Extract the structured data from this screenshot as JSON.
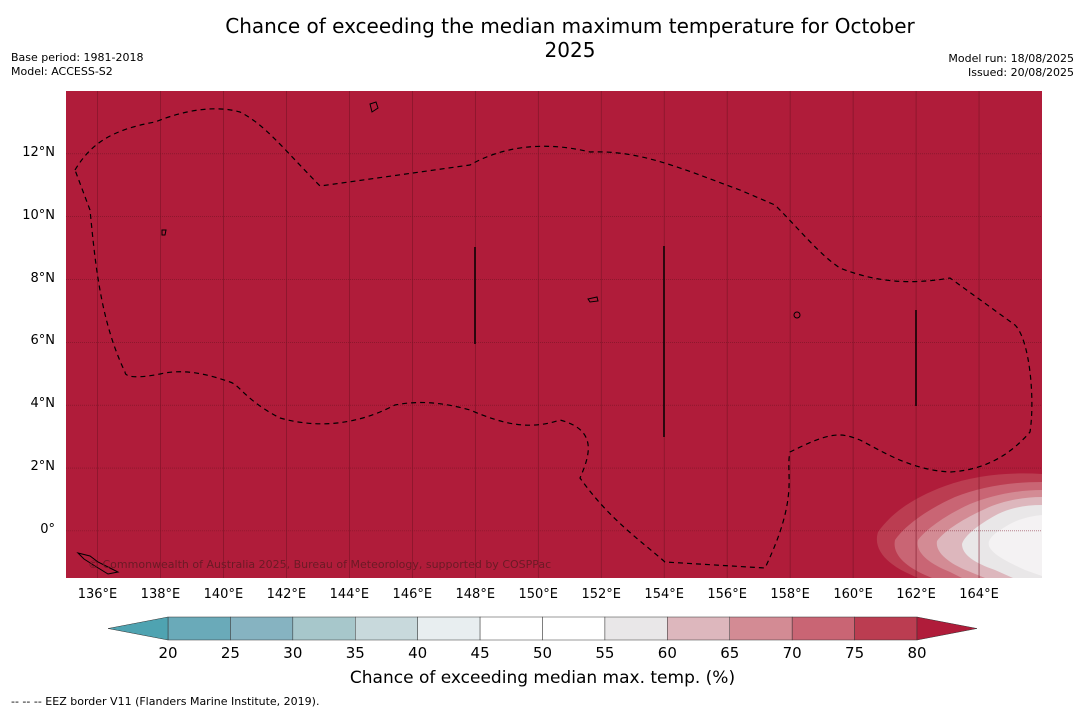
{
  "title": "Chance of exceeding the median maximum temperature for October 2025",
  "meta_left": {
    "base_period": "Base period: 1981-2018",
    "model": "Model: ACCESS-S2"
  },
  "meta_right": {
    "model_run": "Model run: 18/08/2025",
    "issued": "Issued: 20/08/2025"
  },
  "copyright": "© Commonwealth of Australia 2025, Bureau of Meteorology, supported by COSPPac",
  "footer": "--  --  -- EEZ border V11 (Flanders Marine Institute, 2019).",
  "map": {
    "lon_range": [
      135.0,
      166.0
    ],
    "lat_range": [
      -1.5,
      14.0
    ],
    "lat_ticks": [
      "12°N",
      "10°N",
      "8°N",
      "6°N",
      "4°N",
      "2°N",
      "0°"
    ],
    "lat_values": [
      12,
      10,
      8,
      6,
      4,
      2,
      0
    ],
    "lon_ticks": [
      "136°E",
      "138°E",
      "140°E",
      "142°E",
      "144°E",
      "146°E",
      "148°E",
      "150°E",
      "152°E",
      "154°E",
      "156°E",
      "158°E",
      "160°E",
      "162°E",
      "164°E"
    ],
    "lon_values": [
      136,
      138,
      140,
      142,
      144,
      146,
      148,
      150,
      152,
      154,
      156,
      158,
      160,
      162,
      164
    ],
    "dominant_category": "80",
    "grid": true
  },
  "colorbar": {
    "label": "Chance of exceeding median max. temp. (%)",
    "ticks": [
      "20",
      "25",
      "30",
      "35",
      "40",
      "45",
      "50",
      "55",
      "60",
      "65",
      "70",
      "75",
      "80"
    ],
    "colors": [
      "#6aaab9",
      "#86b3c1",
      "#a7c7cb",
      "#c8d9dc",
      "#e8eef0",
      "#ffffff",
      "#ffffff",
      "#e9e7e8",
      "#ddb7bd",
      "#d38b94",
      "#c96574",
      "#bb3d51"
    ],
    "under_color": "#4fa3b1",
    "over_color": "#b01c3a"
  }
}
